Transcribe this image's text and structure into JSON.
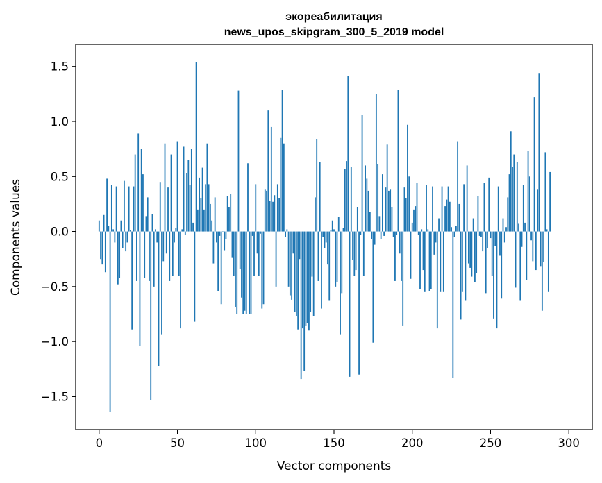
{
  "chart_data": {
    "type": "bar",
    "title_line1": "экореабилитация",
    "title_line2": "news_upos_skipgram_300_5_2019 model",
    "xlabel": "Vector components",
    "ylabel": "Components values",
    "xlim": [
      -15,
      315
    ],
    "ylim": [
      -1.8,
      1.7
    ],
    "xticks": [
      0,
      50,
      100,
      150,
      200,
      250,
      300
    ],
    "yticks": [
      -1.5,
      -1.0,
      -0.5,
      0.0,
      0.5,
      1.0,
      1.5
    ],
    "ytick_labels": [
      "−1.5",
      "−1.0",
      "−0.5",
      "0.0",
      "0.5",
      "1.0",
      "1.5"
    ],
    "bar_color": "#1f77b4",
    "grid": false,
    "values": [
      0.1,
      -0.25,
      -0.3,
      0.15,
      -0.37,
      0.48,
      0.05,
      -1.64,
      0.42,
      0.02,
      -0.1,
      0.41,
      -0.48,
      -0.42,
      0.1,
      -0.15,
      0.46,
      -0.18,
      -0.1,
      0.41,
      0.01,
      -0.89,
      0.41,
      0.7,
      -0.45,
      0.89,
      -1.04,
      0.75,
      0.52,
      -0.42,
      0.14,
      0.31,
      -0.45,
      -1.53,
      0.16,
      -0.5,
      0.02,
      -0.1,
      -1.22,
      0.45,
      -0.94,
      -0.27,
      0.8,
      -0.2,
      0.4,
      -0.45,
      0.7,
      -0.4,
      -0.1,
      0.03,
      0.82,
      -0.4,
      -0.88,
      0.02,
      0.77,
      -0.03,
      0.53,
      0.65,
      0.42,
      0.75,
      0.08,
      -0.82,
      1.54,
      0.2,
      0.49,
      0.3,
      0.58,
      0.2,
      0.43,
      0.8,
      0.43,
      0.25,
      0.1,
      -0.29,
      0.31,
      -0.1,
      -0.54,
      -0.04,
      -0.66,
      0.0,
      -0.17,
      -0.07,
      0.32,
      0.22,
      0.34,
      -0.24,
      -0.4,
      -0.69,
      -0.75,
      1.28,
      -0.34,
      -0.6,
      -0.75,
      -0.72,
      -0.75,
      0.62,
      -0.75,
      -0.75,
      -0.04,
      -0.4,
      0.43,
      -0.2,
      -0.4,
      -0.02,
      -0.7,
      -0.66,
      0.38,
      0.37,
      1.1,
      0.28,
      0.95,
      0.27,
      0.33,
      -0.5,
      0.43,
      0.3,
      0.85,
      1.29,
      0.8,
      -0.05,
      0.02,
      -0.5,
      -0.58,
      -0.62,
      -0.2,
      -0.73,
      -0.77,
      -0.89,
      -0.25,
      -1.34,
      -0.88,
      -1.27,
      -0.86,
      -0.83,
      -0.9,
      -0.73,
      -0.41,
      -0.77,
      0.31,
      0.84,
      -0.45,
      0.63,
      -0.7,
      -0.05,
      -0.15,
      -0.1,
      -0.3,
      -0.63,
      0.01,
      0.1,
      0.02,
      -0.5,
      -0.46,
      0.13,
      -0.94,
      -0.56,
      0.03,
      0.57,
      0.64,
      1.41,
      -1.32,
      0.59,
      -0.26,
      -0.4,
      -0.35,
      0.22,
      -1.3,
      -0.03,
      1.06,
      -0.4,
      0.6,
      0.48,
      0.37,
      0.18,
      -0.07,
      -1.01,
      -0.12,
      1.25,
      0.61,
      0.14,
      -0.07,
      0.52,
      -0.04,
      0.4,
      0.79,
      0.37,
      0.38,
      0.22,
      -0.05,
      -0.45,
      -0.03,
      1.29,
      -0.2,
      -0.45,
      -0.86,
      0.4,
      0.3,
      0.97,
      0.5,
      -0.43,
      0.08,
      0.2,
      0.23,
      0.44,
      -0.03,
      -0.52,
      0.02,
      -0.35,
      -0.55,
      0.42,
      0.02,
      -0.54,
      -0.52,
      0.41,
      -0.21,
      -0.1,
      -0.88,
      0.12,
      -0.55,
      0.41,
      -0.55,
      0.23,
      0.29,
      0.41,
      0.27,
      0.04,
      -1.33,
      -0.05,
      0.05,
      0.82,
      0.25,
      -0.8,
      -0.55,
      0.43,
      -0.63,
      0.6,
      -0.29,
      -0.33,
      -0.41,
      0.12,
      -0.46,
      -0.38,
      0.32,
      -0.04,
      -0.05,
      -0.18,
      0.44,
      -0.56,
      -0.15,
      0.49,
      -0.06,
      -0.4,
      -0.79,
      -0.13,
      -0.88,
      0.41,
      -0.22,
      -0.61,
      0.12,
      -0.1,
      0.04,
      0.31,
      0.52,
      0.91,
      0.59,
      0.7,
      -0.51,
      0.63,
      0.07,
      -0.63,
      -0.14,
      0.42,
      0.08,
      -0.44,
      0.73,
      0.5,
      -0.08,
      -0.27,
      1.22,
      -0.35,
      0.38,
      1.44,
      -0.32,
      -0.72,
      -0.28,
      0.72,
      0.02,
      -0.55,
      0.54
    ]
  }
}
